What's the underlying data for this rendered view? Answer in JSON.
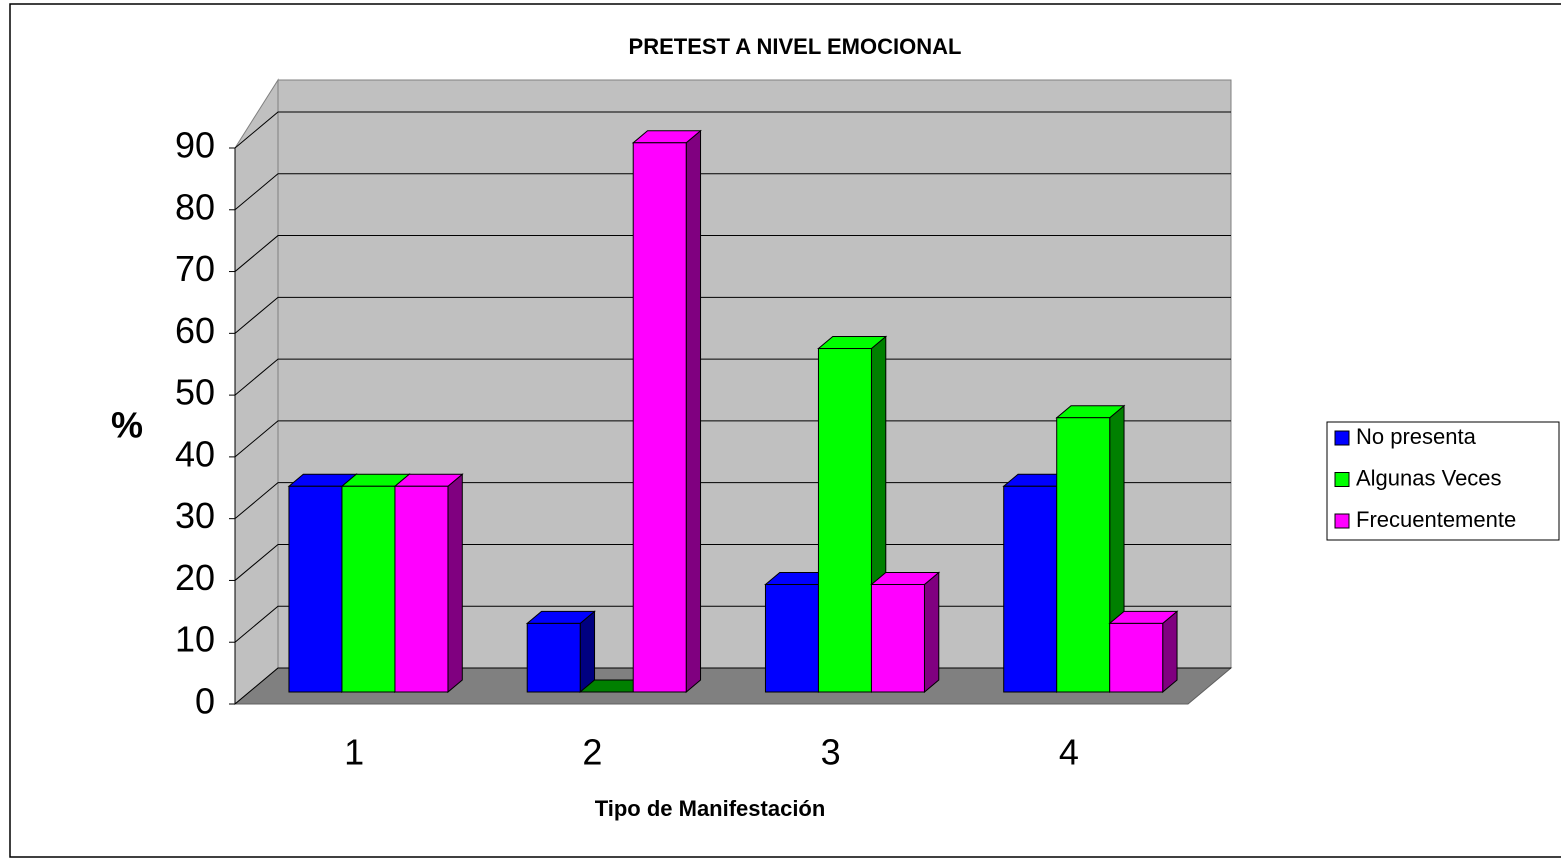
{
  "chart_data": {
    "type": "bar3d",
    "title": "PRETEST  A NIVEL EMOCIONAL",
    "x_label": "Tipo de Manifestación",
    "y_label": "%",
    "categories": [
      "1",
      "2",
      "3",
      "4"
    ],
    "series": [
      {
        "name": "No presenta",
        "color": "#0000ff",
        "values": [
          33.3,
          11.1,
          17.4,
          33.3
        ]
      },
      {
        "name": "Algunas Veces",
        "color": "#00ff00",
        "values": [
          33.3,
          0,
          55.6,
          44.4
        ]
      },
      {
        "name": "Frecuentemente",
        "color": "#ff00ff",
        "values": [
          33.3,
          88.9,
          17.4,
          11.1
        ]
      }
    ],
    "ylim": [
      0,
      90
    ],
    "yticks": [
      0,
      10,
      20,
      30,
      40,
      50,
      60,
      70,
      80,
      90
    ],
    "grid": true,
    "legend": "right"
  }
}
